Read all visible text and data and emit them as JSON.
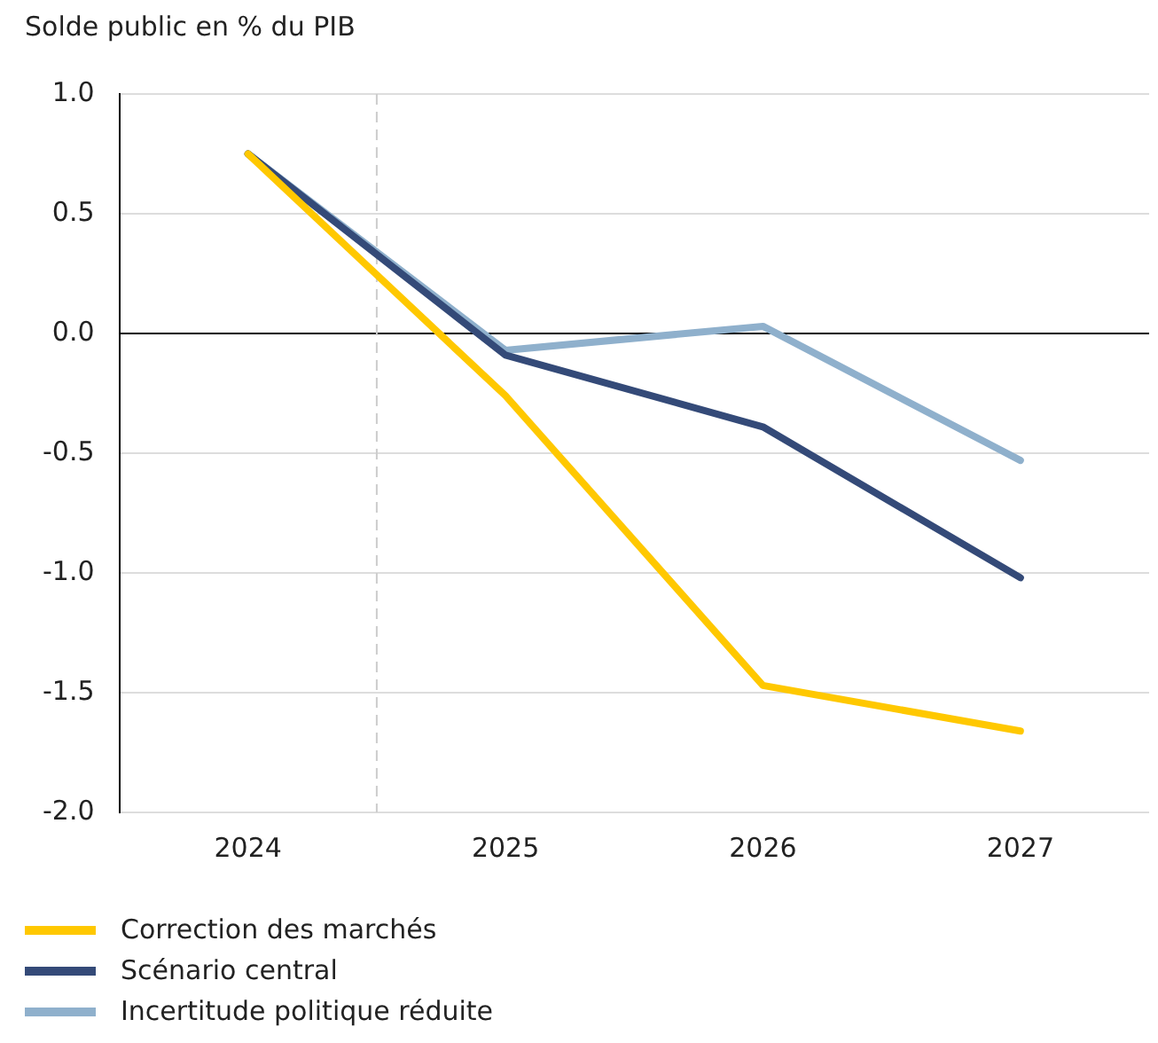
{
  "chart_data": {
    "type": "line",
    "title": "Solde public en % du PIB",
    "x": [
      2024,
      2025,
      2026,
      2027
    ],
    "xlim": [
      2023.5,
      2027.5
    ],
    "xticks": [
      2024,
      2025,
      2026,
      2027
    ],
    "ylim": [
      -2.0,
      1.0
    ],
    "yticks": [
      {
        "value": -2.0,
        "label": "-2.0"
      },
      {
        "value": -1.5,
        "label": "-1.5"
      },
      {
        "value": -1.0,
        "label": "-1.0"
      },
      {
        "value": -0.5,
        "label": "-0.5"
      },
      {
        "value": 0.0,
        "label": "0.0"
      },
      {
        "value": 0.5,
        "label": "0.5"
      },
      {
        "value": 1.0,
        "label": "1.0"
      }
    ],
    "series": [
      {
        "name": "Correction des marchés",
        "color": "#ffc800",
        "values": [
          0.75,
          -0.26,
          -1.47,
          -1.66
        ]
      },
      {
        "name": "Scénario central",
        "color": "#344a78",
        "values": [
          0.75,
          -0.09,
          -0.39,
          -1.02
        ]
      },
      {
        "name": "Incertitude politique réduite",
        "color": "#8fb0cc",
        "values": [
          0.75,
          -0.07,
          0.03,
          -0.53
        ]
      }
    ],
    "ref_lines": [
      {
        "axis": "y",
        "value": 0,
        "color": "#000000",
        "line_style": "solid"
      },
      {
        "axis": "x",
        "value": 2024.5,
        "color": "#cccccc",
        "line_style": "dashed"
      }
    ],
    "grid": "y",
    "legend": "bottom",
    "marker": "none",
    "line_style": "solid"
  }
}
